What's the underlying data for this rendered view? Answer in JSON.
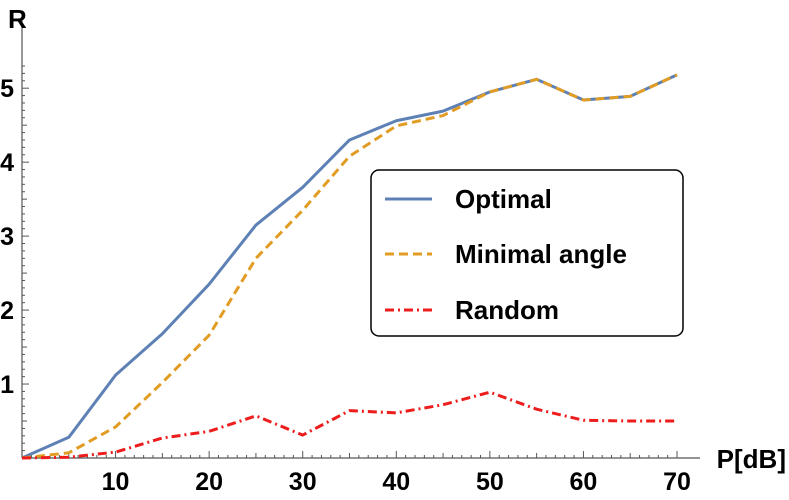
{
  "chart_data": {
    "type": "line",
    "xlabel": "P[dB]",
    "ylabel": "R",
    "xlim": [
      0,
      70
    ],
    "ylim": [
      0,
      5.3
    ],
    "x_ticks": [
      10,
      20,
      30,
      40,
      50,
      60,
      70
    ],
    "y_ticks": [
      1,
      2,
      3,
      4,
      5
    ],
    "grid": false,
    "legend_position": "center-right",
    "x": [
      0,
      5,
      10,
      15,
      20,
      25,
      30,
      35,
      40,
      45,
      50,
      55,
      60,
      65,
      70
    ],
    "series": [
      {
        "name": "Optimal",
        "color": "#5e81b5",
        "dash": "solid",
        "values": [
          0,
          0.28,
          1.12,
          1.68,
          2.35,
          3.15,
          3.66,
          4.3,
          4.56,
          4.69,
          4.95,
          5.12,
          4.84,
          4.89,
          5.18
        ]
      },
      {
        "name": "Minimal angle",
        "color": "#e19c24",
        "dash": "dashed",
        "values": [
          0,
          0.07,
          0.42,
          1.02,
          1.66,
          2.7,
          3.35,
          4.08,
          4.49,
          4.63,
          4.95,
          5.12,
          4.84,
          4.89,
          5.18
        ]
      },
      {
        "name": "Random",
        "color": "#ee1d1d",
        "dash": "dashdot",
        "values": [
          0,
          0.01,
          0.08,
          0.27,
          0.36,
          0.57,
          0.31,
          0.64,
          0.61,
          0.72,
          0.89,
          0.66,
          0.51,
          0.5,
          0.5
        ]
      }
    ]
  }
}
